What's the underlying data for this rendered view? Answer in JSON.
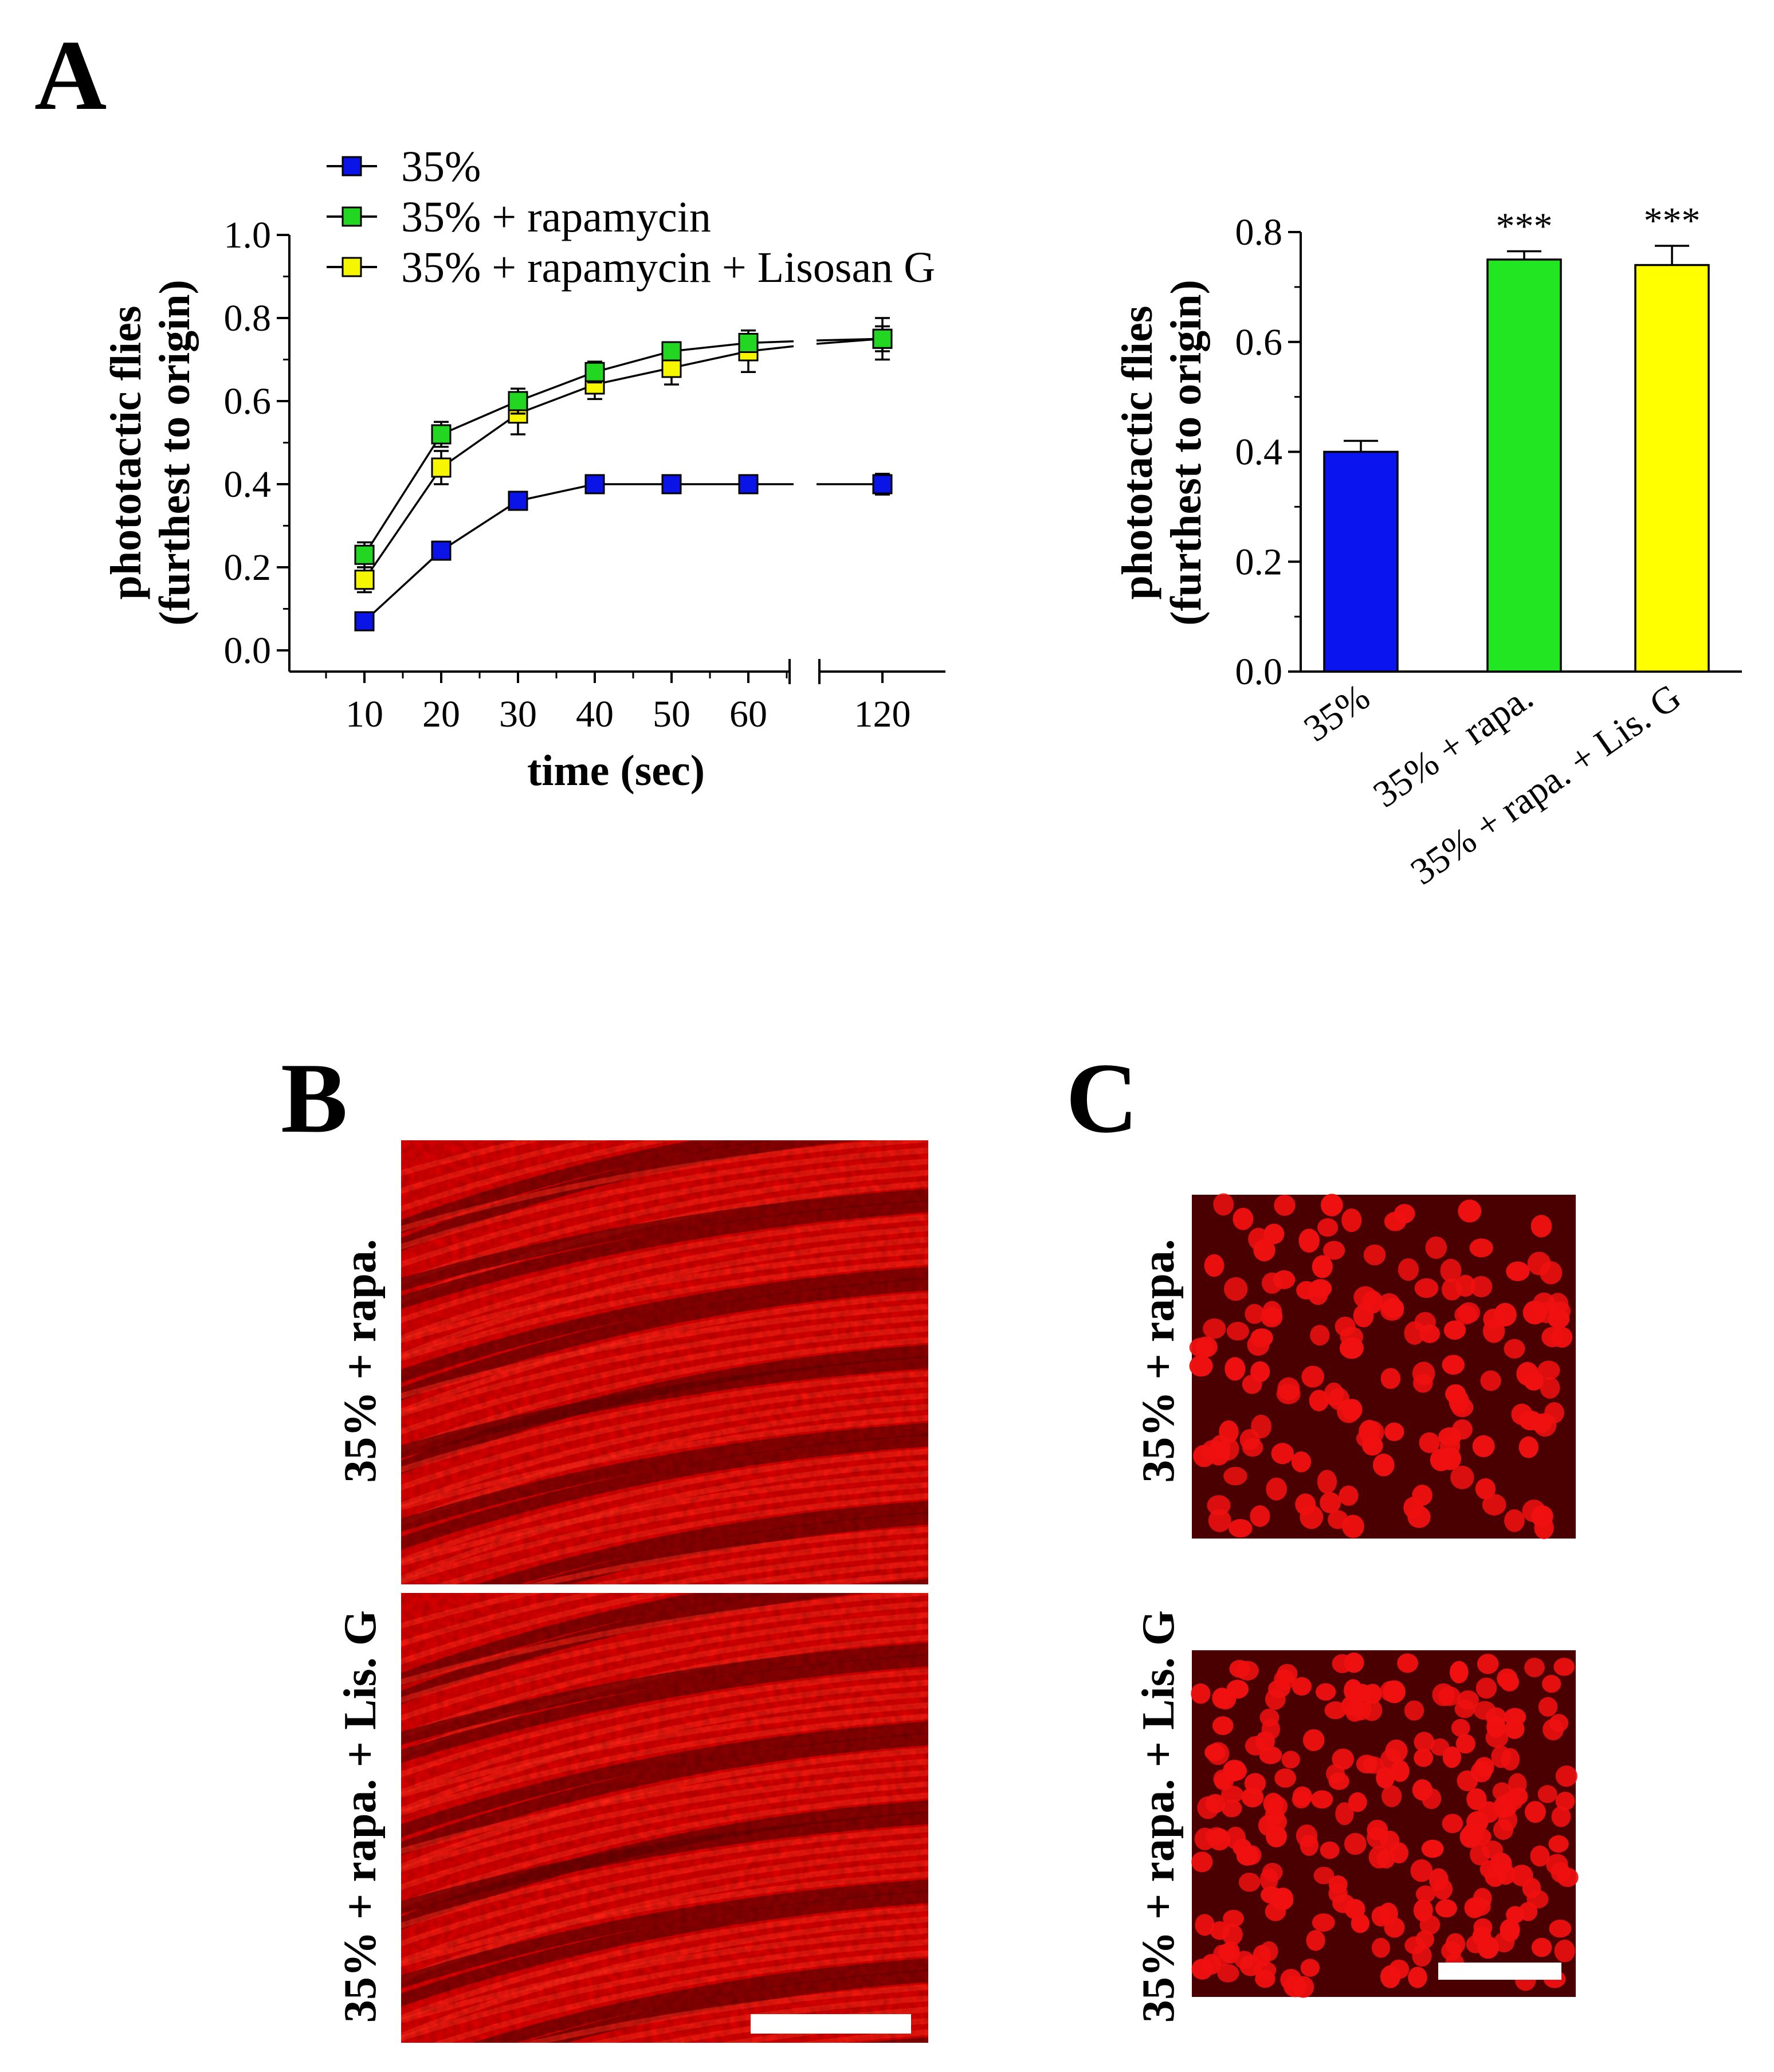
{
  "panels": {
    "A": "A",
    "B": "B",
    "C": "C"
  },
  "chart_data": [
    {
      "type": "line",
      "ylabel_lines": [
        "phototactic flies",
        "(furthest to origin)"
      ],
      "xlabel": "time (sec)",
      "x": [
        10,
        20,
        30,
        40,
        50,
        60,
        120
      ],
      "x_ticks": [
        "10",
        "20",
        "30",
        "40",
        "50",
        "60",
        "120"
      ],
      "axis_break_between": [
        60,
        120
      ],
      "ylim": [
        0,
        1.0
      ],
      "y_ticks": [
        "0.0",
        "0.2",
        "0.4",
        "0.6",
        "0.8",
        "1.0"
      ],
      "legend_position": "top-left",
      "series": [
        {
          "name": "35%",
          "color": "#0a14e6",
          "values": [
            0.07,
            0.24,
            0.36,
            0.4,
            0.4,
            0.4,
            0.4
          ],
          "errors": [
            0.01,
            0.015,
            0.02,
            0.015,
            0.02,
            0.02,
            0.025
          ]
        },
        {
          "name": "35% + rapamycin",
          "color": "#22d622",
          "values": [
            0.23,
            0.52,
            0.6,
            0.67,
            0.72,
            0.74,
            0.75
          ],
          "errors": [
            0.03,
            0.03,
            0.03,
            0.025,
            0.02,
            0.02,
            0.03
          ]
        },
        {
          "name": "35% + rapamycin + Lisosan G",
          "color": "#f6f600",
          "values": [
            0.17,
            0.44,
            0.57,
            0.64,
            0.68,
            0.72,
            0.75
          ],
          "errors": [
            0.03,
            0.04,
            0.05,
            0.035,
            0.04,
            0.05,
            0.05
          ]
        }
      ]
    },
    {
      "type": "bar",
      "ylabel_lines": [
        "phototactic flies",
        "(furthest to origin)"
      ],
      "categories": [
        "35%",
        "35% + rapa.",
        "35% + rapa. + Lis. G"
      ],
      "values": [
        0.4,
        0.75,
        0.74
      ],
      "errors": [
        0.02,
        0.015,
        0.035
      ],
      "colors": [
        "#0a14ee",
        "#22e622",
        "#ffff00"
      ],
      "significance": [
        "",
        "***",
        "***"
      ],
      "ylim": [
        0,
        0.8
      ],
      "y_ticks": [
        "0.0",
        "0.2",
        "0.4",
        "0.6",
        "0.8"
      ]
    }
  ],
  "micrographs": {
    "B": {
      "rows": [
        "35% + rapa.",
        "35% + rapa. + Lis. G"
      ],
      "type": "muscle-fibers"
    },
    "C": {
      "rows": [
        "35% + rapa.",
        "35% + rapa. + Lis. G"
      ],
      "type": "nuclei"
    }
  }
}
